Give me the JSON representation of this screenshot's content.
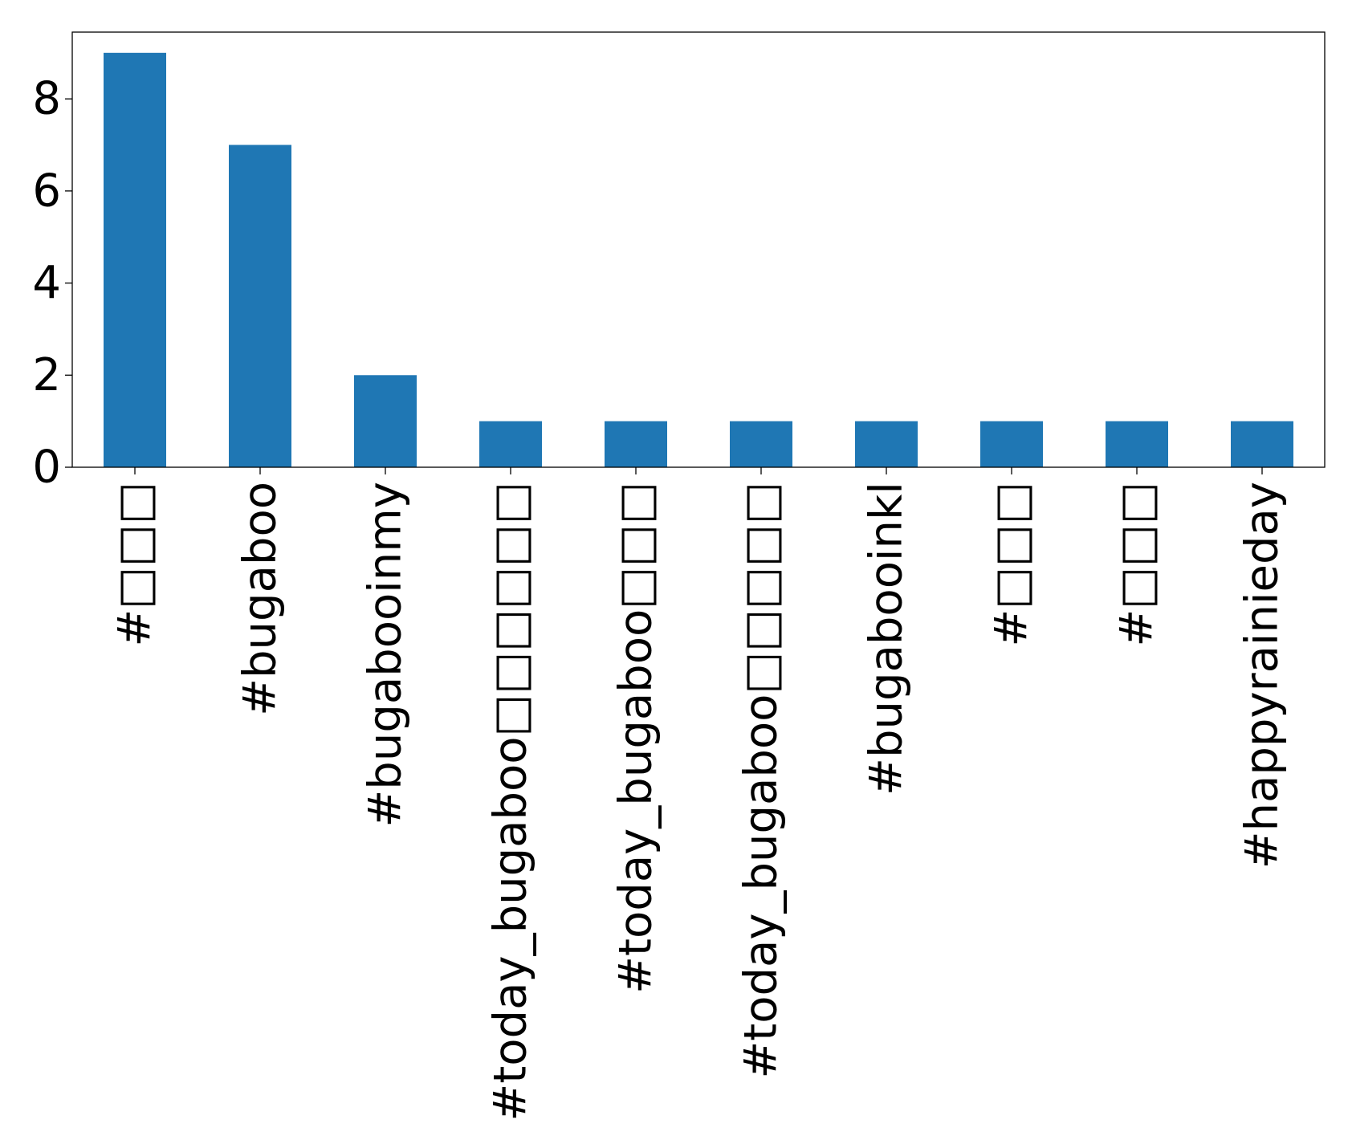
{
  "chart_data": {
    "type": "bar",
    "categories": [
      "#□□□",
      "#bugaboo",
      "#bugabooinmy",
      "#today_bugaboo□□□□□□",
      "#today_bugaboo□□□",
      "#today_bugaboo□□□□□",
      "#bugabooinkl",
      "#□□□",
      "#□□□",
      "#happyrainieday"
    ],
    "values": [
      9,
      7,
      2,
      1,
      1,
      1,
      1,
      1,
      1,
      1
    ],
    "yticks": [
      "0",
      "2",
      "4",
      "6",
      "8"
    ],
    "ylim": [
      0,
      9.45
    ],
    "bar_color": "#1f77b4",
    "title": "",
    "xlabel": "",
    "ylabel": "",
    "grid": false,
    "legend": "none"
  }
}
